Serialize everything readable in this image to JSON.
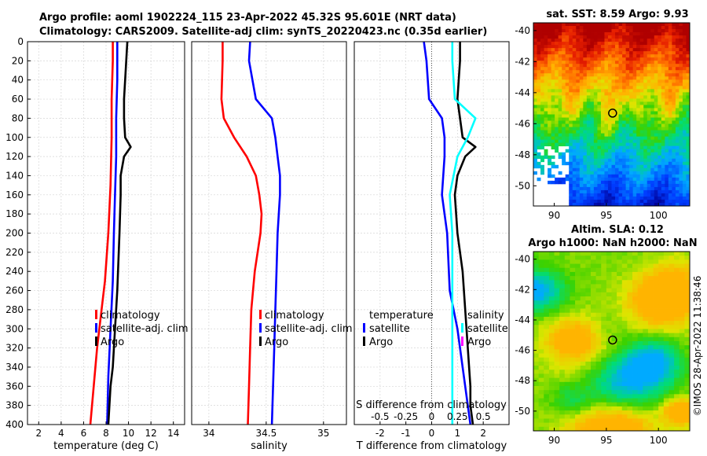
{
  "title_line1": "Argo profile: aoml 1902224_115 23-Apr-2022 45.32S 95.601E (NRT data)",
  "title_line2": "Climatology: CARS2009. Satellite-adj clim: synTS_20220423.nc (0.35d earlier)",
  "stamp": "©IMOS 28-Apr-2022 11:38:46",
  "colors": {
    "climatology": "#ff0000",
    "satellite": "#0000ff",
    "argo": "#000000",
    "cyan": "#00ffff",
    "magenta": "#ff00ff"
  },
  "chart_data": [
    {
      "type": "line",
      "name": "temperature",
      "xlabel": "temperature (deg C)",
      "ylabel": "",
      "xlim": [
        1,
        15
      ],
      "ylim": [
        400,
        0
      ],
      "xticks": [
        2,
        4,
        6,
        8,
        10,
        12,
        14
      ],
      "yticks": [
        0,
        20,
        40,
        60,
        80,
        100,
        120,
        140,
        160,
        180,
        200,
        220,
        240,
        260,
        280,
        300,
        320,
        340,
        360,
        380,
        400
      ],
      "grid": true,
      "legend": {
        "position": "right-middle",
        "entries": [
          "climatology",
          "satellite-adj. clim",
          "Argo"
        ]
      },
      "series": [
        {
          "name": "climatology",
          "color": "#ff0000",
          "depth": [
            0,
            20,
            60,
            100,
            150,
            200,
            250,
            280,
            320,
            360,
            400
          ],
          "values": [
            8.6,
            8.6,
            8.5,
            8.5,
            8.4,
            8.2,
            7.9,
            7.6,
            7.2,
            6.9,
            6.6
          ]
        },
        {
          "name": "satellite-adj. clim",
          "color": "#0000ff",
          "depth": [
            0,
            40,
            80,
            120,
            160,
            200,
            250,
            300,
            350,
            400
          ],
          "values": [
            9.0,
            9.0,
            8.9,
            8.9,
            8.8,
            8.7,
            8.6,
            8.4,
            8.2,
            8.1
          ]
        },
        {
          "name": "Argo",
          "color": "#000000",
          "depth": [
            0,
            20,
            40,
            60,
            80,
            100,
            110,
            120,
            140,
            160,
            200,
            260,
            300,
            340,
            360,
            380,
            400
          ],
          "values": [
            9.9,
            9.8,
            9.7,
            9.6,
            9.6,
            9.7,
            10.2,
            9.6,
            9.3,
            9.3,
            9.2,
            9.0,
            8.8,
            8.6,
            8.4,
            8.3,
            8.2
          ]
        }
      ]
    },
    {
      "type": "line",
      "name": "salinity",
      "xlabel": "salinity",
      "ylabel": "",
      "xlim": [
        33.85,
        35.2
      ],
      "ylim": [
        400,
        0
      ],
      "xticks": [
        34,
        34.5,
        35
      ],
      "xtick_labels": [
        "34",
        "34.5",
        "35"
      ],
      "grid": true,
      "legend": {
        "position": "right-middle",
        "entries": [
          "climatology",
          "satellite-adj. clim",
          "Argo"
        ]
      },
      "series": [
        {
          "name": "climatology",
          "color": "#ff0000",
          "depth": [
            0,
            20,
            60,
            80,
            100,
            120,
            140,
            160,
            180,
            200,
            240,
            280,
            320,
            360,
            400
          ],
          "values": [
            34.12,
            34.12,
            34.11,
            34.13,
            34.22,
            34.33,
            34.41,
            34.44,
            34.46,
            34.45,
            34.4,
            34.37,
            34.36,
            34.35,
            34.34
          ]
        },
        {
          "name": "satellite-adj. clim",
          "color": "#0000ff",
          "depth": [
            0,
            20,
            60,
            80,
            100,
            120,
            140,
            160,
            180,
            200,
            240,
            280,
            320,
            360,
            400
          ],
          "values": [
            34.36,
            34.35,
            34.41,
            34.55,
            34.58,
            34.6,
            34.62,
            34.62,
            34.61,
            34.6,
            34.59,
            34.58,
            34.57,
            34.56,
            34.55
          ]
        },
        {
          "name": "Argo",
          "color": "#000000",
          "depth": [],
          "values": []
        }
      ]
    },
    {
      "type": "line",
      "name": "difference",
      "xlabel": "T difference from climatology",
      "xlabel_top": "S difference from climatology",
      "ylabel": "",
      "xlim": [
        -3.0,
        3.0
      ],
      "ylim": [
        400,
        0
      ],
      "xticks": [
        -2,
        -1,
        0,
        1,
        2
      ],
      "xtick_labels": [
        "-2",
        "-1",
        "0",
        "1",
        "2"
      ],
      "top_ticks": [
        "-0.5",
        "-0.25",
        "0",
        "0.25",
        "0.5"
      ],
      "grid": true,
      "legend_temperature": {
        "title": "temperature",
        "entries": [
          "satellite",
          "Argo"
        ]
      },
      "legend_salinity": {
        "title": "salinity",
        "entries": [
          "satellite",
          "Argo"
        ]
      },
      "series": [
        {
          "name": "T satellite",
          "color": "#0000ff",
          "depth": [
            0,
            20,
            60,
            80,
            100,
            120,
            160,
            200,
            260,
            300,
            360,
            400
          ],
          "values": [
            -0.3,
            -0.2,
            -0.1,
            0.4,
            0.5,
            0.5,
            0.4,
            0.6,
            0.7,
            1.0,
            1.3,
            1.5
          ]
        },
        {
          "name": "T Argo",
          "color": "#000000",
          "depth": [
            0,
            20,
            60,
            80,
            100,
            110,
            120,
            140,
            160,
            200,
            240,
            280,
            320,
            360,
            380,
            400
          ],
          "values": [
            1.1,
            1.1,
            1.0,
            1.1,
            1.2,
            1.7,
            1.3,
            1.0,
            0.9,
            1.0,
            1.2,
            1.3,
            1.4,
            1.5,
            1.5,
            1.6
          ]
        },
        {
          "name": "S satellite",
          "color": "#00ffff",
          "depth": [
            0,
            20,
            60,
            80,
            100,
            120,
            160,
            200,
            260,
            300,
            360,
            400
          ],
          "values": [
            0.8,
            0.8,
            0.9,
            1.7,
            1.4,
            1.0,
            0.7,
            0.8,
            0.8,
            0.8,
            0.8,
            0.8
          ]
        },
        {
          "name": "S Argo",
          "color": "#ff00ff",
          "depth": [],
          "values": []
        }
      ]
    },
    {
      "type": "heatmap",
      "name": "sst_map",
      "title": "sat. SST: 8.59 Argo: 9.93",
      "xlim": [
        88,
        103
      ],
      "ylim": [
        -51.3,
        -39.5
      ],
      "xticks": [
        90,
        95,
        100
      ],
      "yticks": [
        -40,
        -42,
        -44,
        -46,
        -48,
        -50
      ],
      "marker": {
        "lon": 95.6,
        "lat": -45.32
      }
    },
    {
      "type": "heatmap",
      "name": "sla_map",
      "title_line1": "Altim. SLA: 0.12",
      "title_line2": "Argo h1000: NaN h2000: NaN",
      "xlim": [
        88,
        103
      ],
      "ylim": [
        -51.3,
        -39.5
      ],
      "xticks": [
        90,
        95,
        100
      ],
      "yticks": [
        -40,
        -42,
        -44,
        -46,
        -48,
        -50
      ],
      "marker": {
        "lon": 95.6,
        "lat": -45.32
      }
    }
  ]
}
